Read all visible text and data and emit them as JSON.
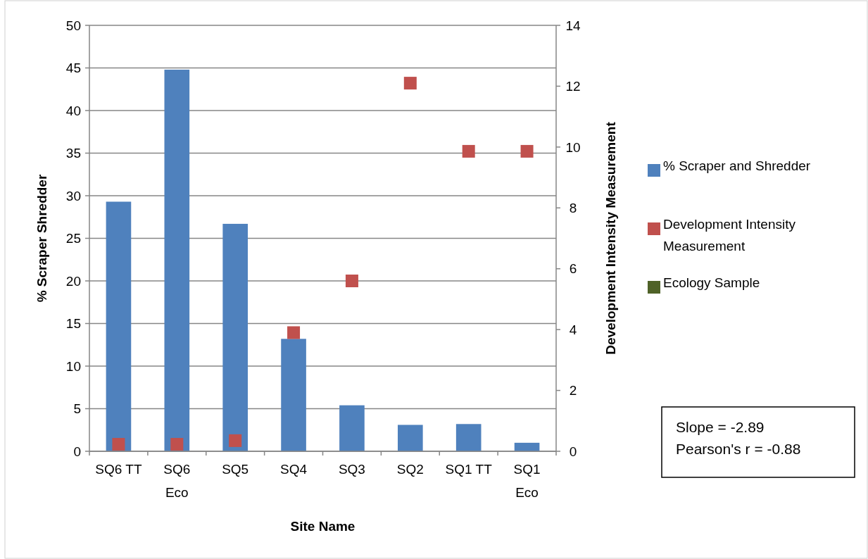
{
  "chart_data": {
    "type": "bar",
    "xlabel": "Site Name",
    "ylabel": "% Scraper Shredder",
    "y2label": "Development Intensity Measurement",
    "categories": [
      "SQ6 TT",
      "SQ6 Eco",
      "SQ5",
      "SQ4",
      "SQ3",
      "SQ2",
      "SQ1 TT",
      "SQ1 Eco"
    ],
    "series": [
      {
        "name": "% Scraper and Shredder",
        "color": "#4f81bd",
        "values": [
          29.3,
          44.8,
          26.7,
          13.2,
          5.4,
          3.1,
          3.2,
          1.0
        ]
      },
      {
        "name": "Development Intensity Measurement",
        "type": "scatter",
        "axis": "y2",
        "marker": "square",
        "color": "#c0504d",
        "values": [
          0.23,
          0.23,
          0.35,
          3.9,
          5.6,
          12.1,
          9.86,
          9.86
        ]
      },
      {
        "name": "Ecology Sample",
        "type": "scatter",
        "marker": "square",
        "color": "#4f6228",
        "values": [
          null,
          null,
          null,
          null,
          null,
          null,
          null,
          null
        ]
      }
    ],
    "ylim": [
      0,
      50
    ],
    "yticks": [
      0,
      5,
      10,
      15,
      20,
      25,
      30,
      35,
      40,
      45,
      50
    ],
    "y2lim": [
      0,
      14
    ],
    "y2ticks": [
      0,
      2,
      4,
      6,
      8,
      10,
      12,
      14
    ],
    "grid": "y",
    "legend": "right",
    "annotations": [
      "Slope = -2.89",
      "Pearson's r = -0.88"
    ]
  }
}
